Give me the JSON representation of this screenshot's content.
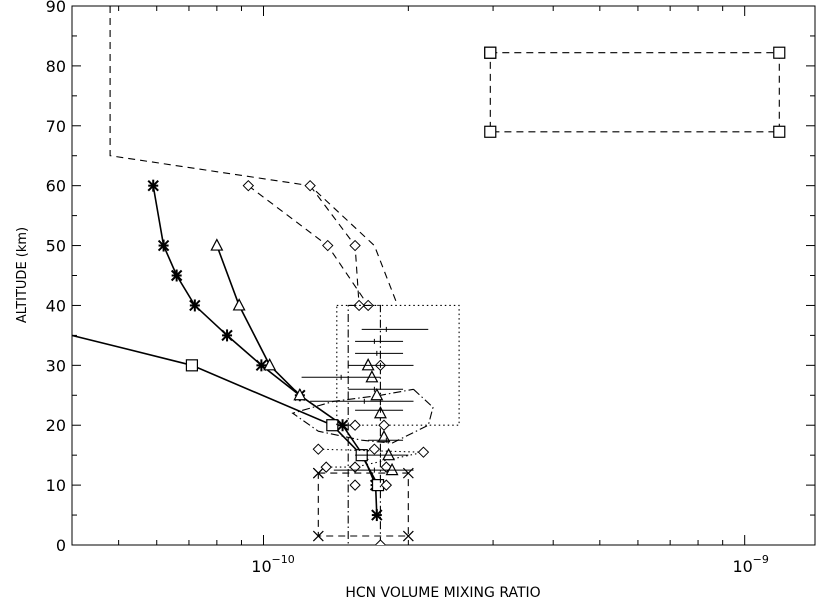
{
  "chart_data": {
    "type": "line",
    "xlabel": "HCN VOLUME MIXING RATIO",
    "ylabel": "ALTITUDE (km)",
    "xscale": "log",
    "xlim": [
      4e-11,
      1.4e-09
    ],
    "ylim": [
      0,
      90
    ],
    "grid": false,
    "legend": "none",
    "x_ticks": [
      {
        "value": 1e-10,
        "base": "10",
        "exp": "−10"
      },
      {
        "value": 1e-09,
        "base": "10",
        "exp": "−9"
      }
    ],
    "y_ticks": [
      "0",
      "10",
      "20",
      "30",
      "40",
      "50",
      "60",
      "70",
      "80",
      "90"
    ],
    "series": [
      {
        "line": "solid",
        "marker": "star",
        "points": [
          [
            5.9e-11,
            60
          ],
          [
            6.2e-11,
            50
          ],
          [
            6.6e-11,
            45
          ],
          [
            7.2e-11,
            40
          ],
          [
            8.4e-11,
            35
          ],
          [
            9.9e-11,
            30
          ],
          [
            1.19e-10,
            25
          ],
          [
            1.46e-10,
            20
          ],
          [
            1.61e-10,
            15
          ],
          [
            1.71e-10,
            10
          ],
          [
            1.72e-10,
            5
          ]
        ]
      },
      {
        "line": "solid",
        "marker": "triangle",
        "points": [
          [
            8e-11,
            50
          ],
          [
            8.9e-11,
            40
          ],
          [
            1.03e-10,
            30
          ],
          [
            1.19e-10,
            25
          ]
        ]
      },
      {
        "line": "solid",
        "marker": "square",
        "points": [
          [
            3e-11,
            37.5
          ],
          [
            7.1e-11,
            30
          ],
          [
            1.39e-10,
            20
          ],
          [
            1.6e-10,
            15
          ],
          [
            1.73e-10,
            10
          ]
        ]
      },
      {
        "line": "dashed",
        "marker": "none",
        "points": [
          [
            4.8e-11,
            90
          ],
          [
            4.8e-11,
            65
          ],
          [
            1.25e-10,
            60
          ],
          [
            1.7e-10,
            50
          ],
          [
            1.9e-10,
            40
          ]
        ]
      },
      {
        "line": "dashed",
        "marker": "diamond",
        "points": [
          [
            9.3e-11,
            60
          ],
          [
            1.36e-10,
            50
          ],
          [
            1.65e-10,
            40
          ]
        ]
      },
      {
        "line": "dashed",
        "marker": "diamond",
        "points": [
          [
            1.25e-10,
            60
          ],
          [
            1.55e-10,
            50
          ],
          [
            1.58e-10,
            40
          ]
        ]
      },
      {
        "line": "dashed",
        "marker": "square",
        "points": [
          [
            2.96e-10,
            82.2
          ],
          [
            1.18e-09,
            82.2
          ],
          [
            1.18e-09,
            69.0
          ],
          [
            2.96e-10,
            69.0
          ],
          [
            2.96e-10,
            82.2
          ]
        ]
      },
      {
        "line": "dashed",
        "marker": "x",
        "points": [
          [
            1.3e-10,
            12
          ],
          [
            2e-10,
            12
          ],
          [
            2e-10,
            1.5
          ],
          [
            1.3e-10,
            1.5
          ],
          [
            1.3e-10,
            12
          ]
        ]
      },
      {
        "line": "dotted",
        "marker": "none",
        "points": [
          [
            1.42e-10,
            40
          ],
          [
            2.55e-10,
            40
          ],
          [
            2.55e-10,
            20
          ],
          [
            1.42e-10,
            20
          ],
          [
            1.42e-10,
            40
          ]
        ]
      },
      {
        "line": "dotted",
        "marker": "diamond",
        "points": [
          [
            1.3e-10,
            16
          ],
          [
            2.15e-10,
            15.5
          ],
          [
            1.55e-10,
            13
          ],
          [
            1.35e-10,
            13
          ]
        ]
      },
      {
        "line": "dashdot",
        "marker": "none",
        "points": [
          [
            1.5e-10,
            40
          ],
          [
            1.75e-10,
            40
          ],
          [
            1.75e-10,
            0
          ],
          [
            1.5e-10,
            0
          ],
          [
            1.5e-10,
            40
          ]
        ]
      },
      {
        "line": "dashdot",
        "marker": "none",
        "points": [
          [
            2.05e-10,
            26
          ],
          [
            2.25e-10,
            23
          ],
          [
            2.2e-10,
            20
          ],
          [
            1.85e-10,
            17
          ],
          [
            1.6e-10,
            17.5
          ],
          [
            1.3e-10,
            19
          ],
          [
            1.15e-10,
            22
          ],
          [
            1.4e-10,
            24
          ],
          [
            1.75e-10,
            25
          ],
          [
            2.05e-10,
            26
          ]
        ]
      },
      {
        "line": "none",
        "marker": "diamond",
        "points": [
          [
            1.75e-10,
            30
          ],
          [
            1.78e-10,
            20
          ],
          [
            1.55e-10,
            20
          ],
          [
            1.8e-10,
            10
          ],
          [
            1.55e-10,
            10
          ],
          [
            1.7e-10,
            16
          ],
          [
            1.8e-10,
            13
          ],
          [
            1.75e-10,
            0
          ]
        ]
      },
      {
        "line": "none",
        "marker": "triangle",
        "points": [
          [
            1.65e-10,
            30
          ],
          [
            1.68e-10,
            28
          ],
          [
            1.72e-10,
            25
          ],
          [
            1.75e-10,
            22
          ],
          [
            1.78e-10,
            18
          ],
          [
            1.82e-10,
            15
          ],
          [
            1.85e-10,
            12.5
          ]
        ]
      },
      {
        "line": "none",
        "marker": "errorbar",
        "points": [
          [
            1.8e-10,
            36,
            1.6e-10,
            2.2e-10
          ],
          [
            1.7e-10,
            34,
            1.55e-10,
            1.95e-10
          ],
          [
            1.72e-10,
            32,
            1.55e-10,
            1.95e-10
          ],
          [
            1.75e-10,
            30,
            1.5e-10,
            2.05e-10
          ],
          [
            1.45e-10,
            28,
            1.2e-10,
            1.75e-10
          ],
          [
            1.7e-10,
            26,
            1.5e-10,
            1.95e-10
          ],
          [
            1.62e-10,
            24,
            1.25e-10,
            2.05e-10
          ],
          [
            1.75e-10,
            22.5,
            1.55e-10,
            1.95e-10
          ],
          [
            1.8e-10,
            17.5,
            1.65e-10,
            1.95e-10
          ],
          [
            1.75e-10,
            15,
            1.55e-10,
            2e-10
          ],
          [
            1.7e-10,
            12.5,
            1.4e-10,
            2.05e-10
          ]
        ]
      }
    ]
  }
}
